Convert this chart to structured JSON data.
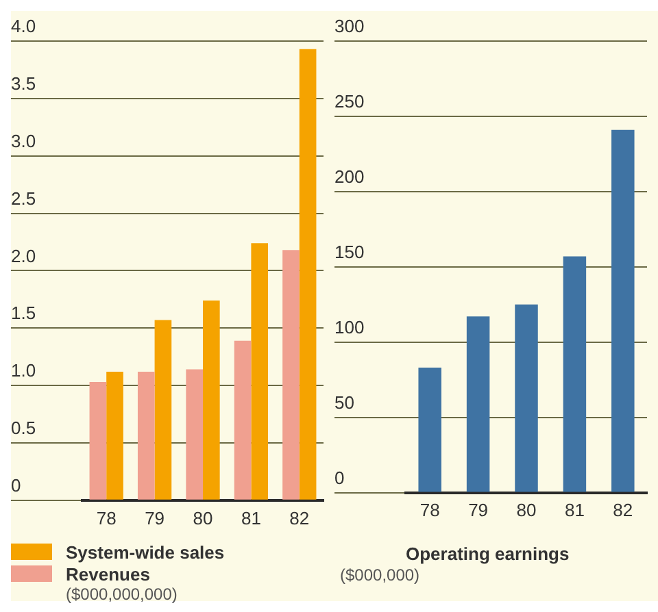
{
  "chart_data": [
    {
      "type": "bar",
      "categories": [
        "78",
        "79",
        "80",
        "81",
        "82"
      ],
      "series": [
        {
          "name": "Revenues",
          "color": "#f0a090",
          "values": [
            1.03,
            1.12,
            1.14,
            1.39,
            2.18
          ]
        },
        {
          "name": "System-wide sales",
          "color": "#f5a300",
          "values": [
            1.12,
            1.57,
            1.74,
            2.24,
            3.93
          ]
        }
      ],
      "ylim": [
        0,
        4
      ],
      "yticks": [
        0,
        {
          "value": 0.5,
          "label": "0.5"
        },
        {
          "value": 1,
          "label": "1.0"
        },
        {
          "value": 1.5,
          "label": "1.5"
        },
        {
          "value": 2,
          "label": "2.0"
        },
        {
          "value": 2.5,
          "label": "2.5"
        },
        {
          "value": 3,
          "label": "3.0"
        },
        {
          "value": 3.5,
          "label": "3.5"
        },
        {
          "value": 4,
          "label": "4.0"
        }
      ],
      "grid": "y",
      "legend": "bottom",
      "annotations": [
        "($000,000,000)"
      ]
    },
    {
      "type": "bar",
      "categories": [
        "78",
        "79",
        "80",
        "81",
        "82"
      ],
      "series": [
        {
          "color": "#3f73a3",
          "values": [
            83,
            117,
            125,
            157,
            241
          ]
        }
      ],
      "ylim": [
        0,
        300
      ],
      "yticks": [
        0,
        50,
        100,
        150,
        200,
        250,
        300
      ],
      "grid": "y",
      "xlabel": "Operating earnings",
      "annotations": [
        "($000,000)"
      ]
    }
  ]
}
